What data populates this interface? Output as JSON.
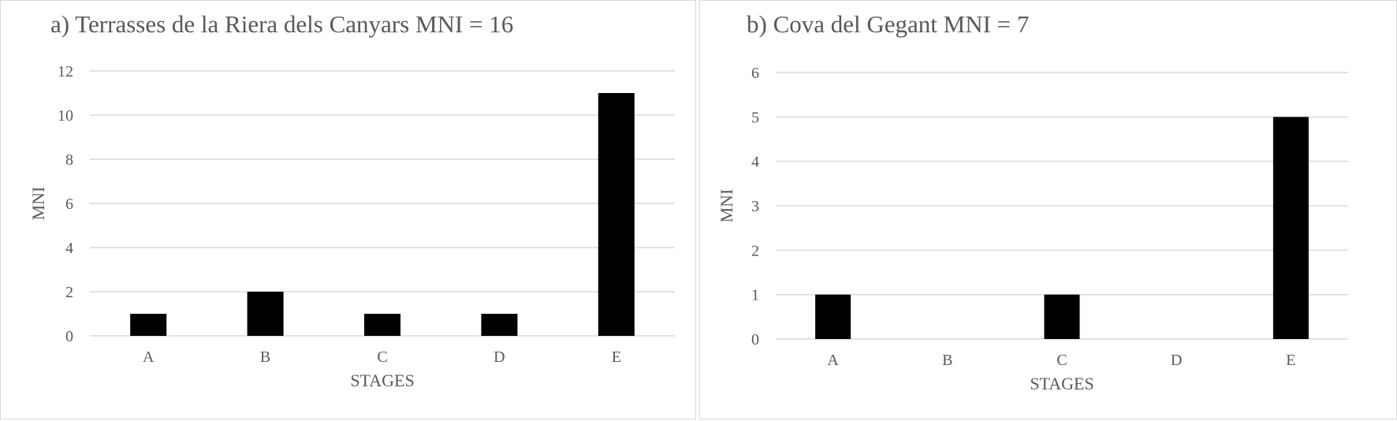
{
  "chart_data": [
    {
      "type": "bar",
      "title": "a) Terrasses de la Riera dels Canyars MNI = 16",
      "xlabel": "STAGES",
      "ylabel": "MNI",
      "categories": [
        "A",
        "B",
        "C",
        "D",
        "E"
      ],
      "values": [
        1,
        2,
        1,
        1,
        11
      ],
      "ylim": [
        0,
        12
      ],
      "yticks": [
        0,
        2,
        4,
        6,
        8,
        10,
        12
      ],
      "grid": true,
      "bar_color": "#000000",
      "grid_color": "#d9d9d9"
    },
    {
      "type": "bar",
      "title": "b) Cova del Gegant MNI = 7",
      "xlabel": "STAGES",
      "ylabel": "MNI",
      "categories": [
        "A",
        "B",
        "C",
        "D",
        "E"
      ],
      "values": [
        1,
        0,
        1,
        0,
        5
      ],
      "ylim": [
        0,
        6
      ],
      "yticks": [
        0,
        1,
        2,
        3,
        4,
        5,
        6
      ],
      "grid": true,
      "bar_color": "#000000",
      "grid_color": "#d9d9d9"
    }
  ]
}
